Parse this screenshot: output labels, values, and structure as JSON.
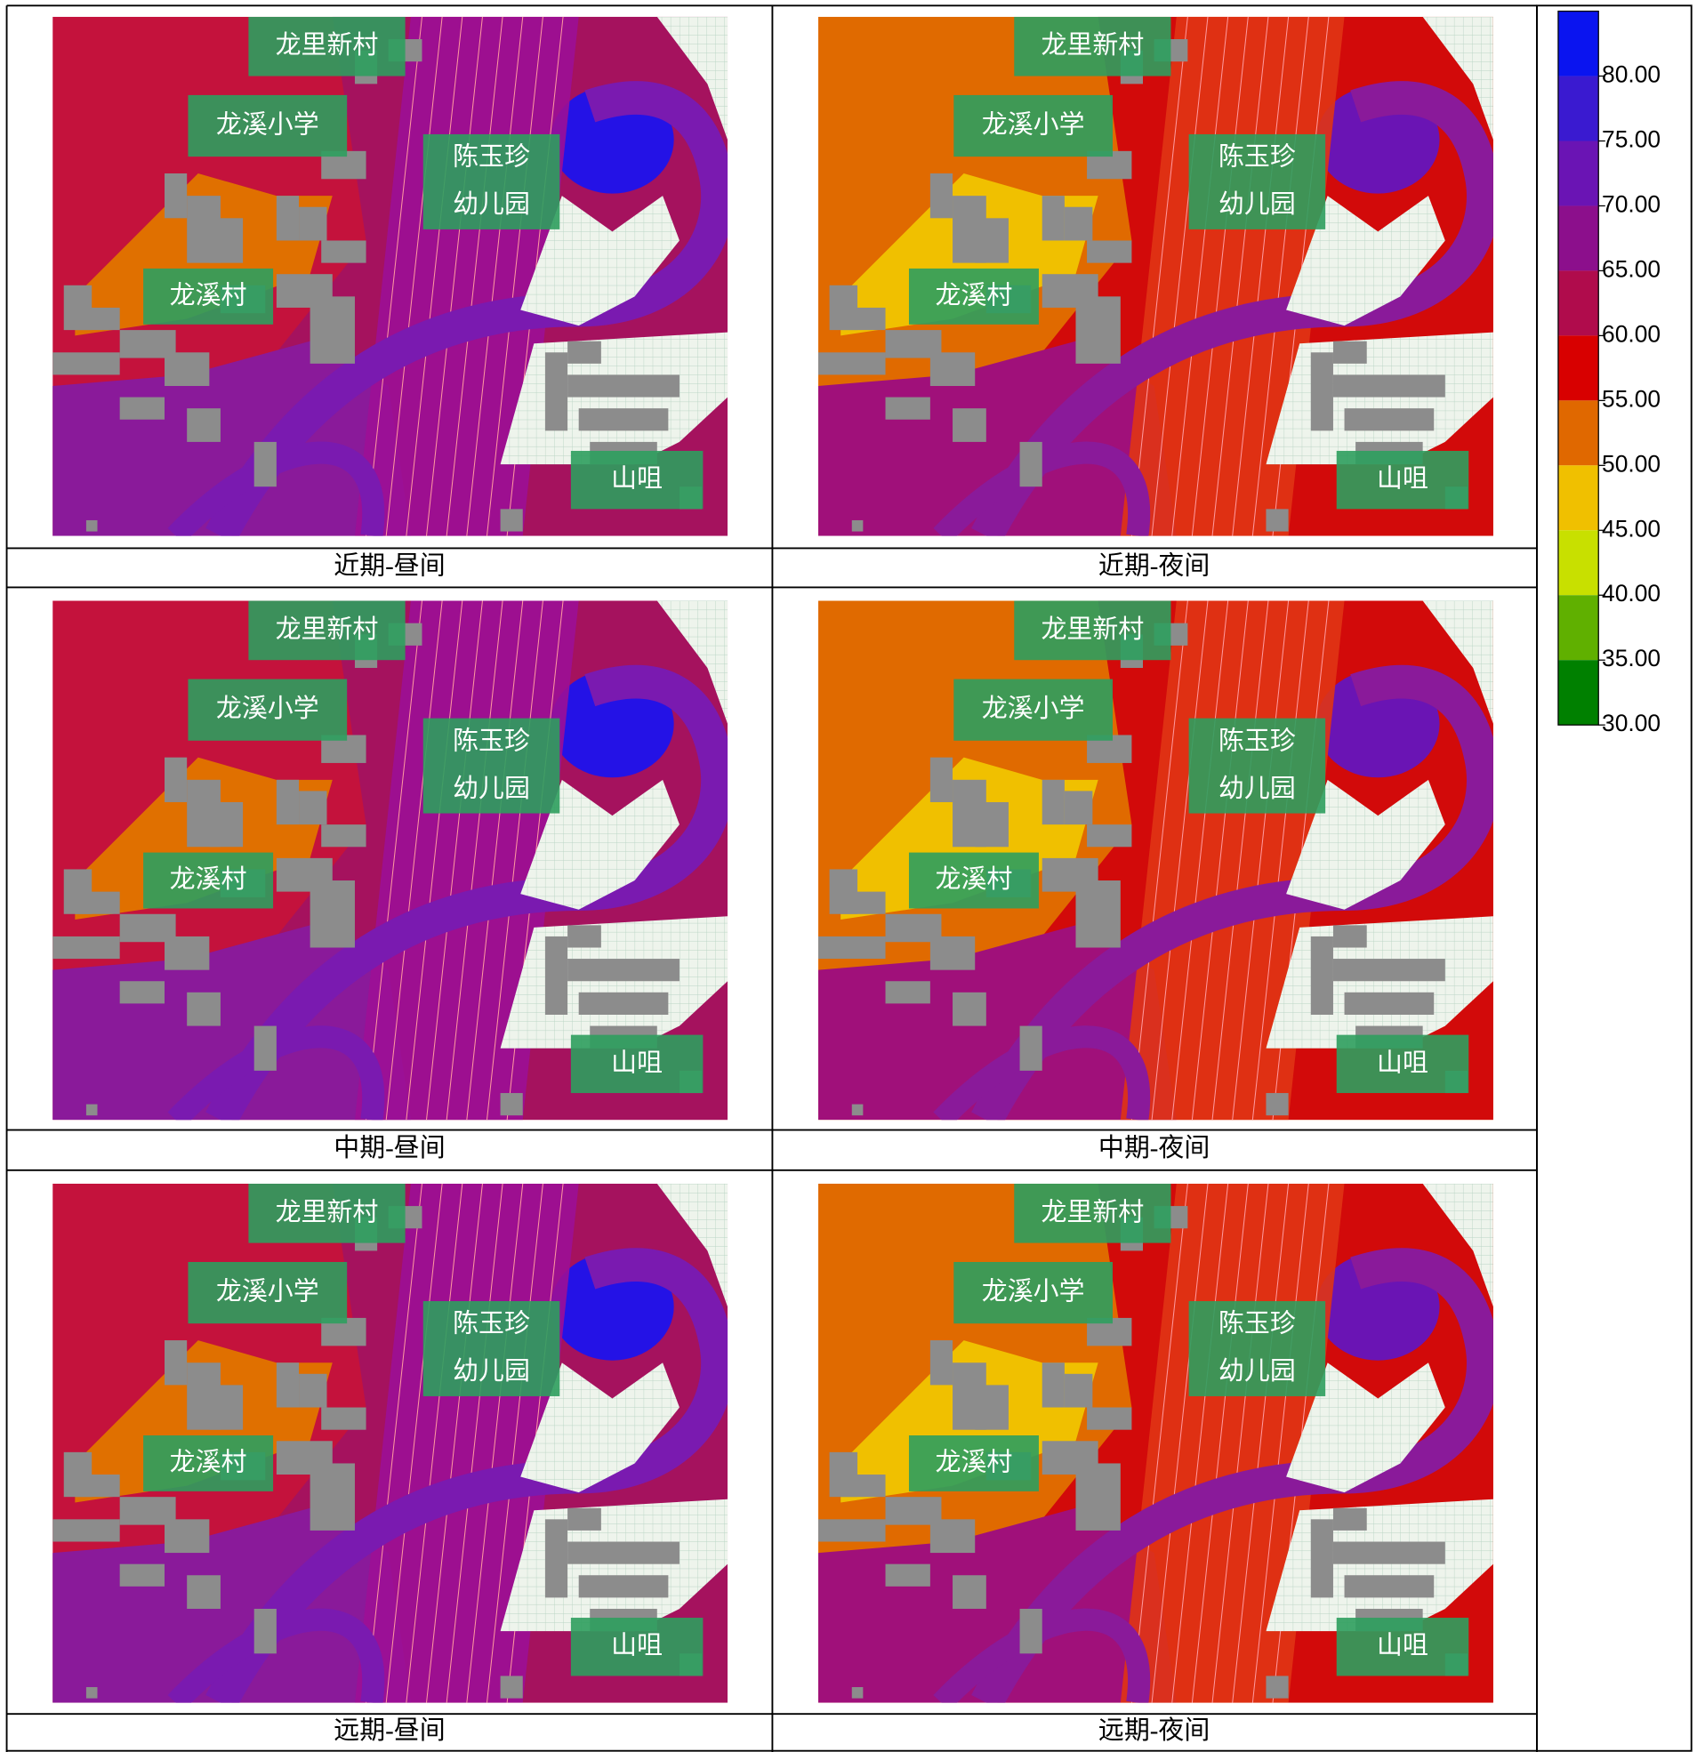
{
  "panels": [
    {
      "caption": "近期-昼间",
      "labels": [
        "龙里新村",
        "龙溪小学",
        "陈玉珍",
        "幼儿园",
        "龙溪村",
        "山咀"
      ]
    },
    {
      "caption": "近期-夜间",
      "labels": [
        "龙里新村",
        "龙溪小学",
        "陈玉珍",
        "幼儿园",
        "龙溪村",
        "山咀"
      ]
    },
    {
      "caption": "中期-昼间",
      "labels": [
        "龙里新村",
        "龙溪小学",
        "陈玉珍",
        "幼儿园",
        "龙溪村",
        "山咀"
      ]
    },
    {
      "caption": "中期-夜间",
      "labels": [
        "龙里新村",
        "龙溪小学",
        "陈玉珍",
        "幼儿园",
        "龙溪村",
        "山咀"
      ]
    },
    {
      "caption": "远期-昼间",
      "labels": [
        "龙里新村",
        "龙溪小学",
        "陈玉珍",
        "幼儿园",
        "龙溪村",
        "山咀"
      ]
    },
    {
      "caption": "远期-夜间",
      "labels": [
        "龙里新村",
        "龙溪小学",
        "陈玉珍",
        "幼儿园",
        "龙溪村",
        "山咀"
      ]
    }
  ],
  "legend": {
    "colors": [
      "#0a14f0",
      "#3a1ad0",
      "#6a14b4",
      "#8c0f8c",
      "#b00c4c",
      "#d80000",
      "#e06800",
      "#f0c000",
      "#c8e000",
      "#60b000",
      "#008000"
    ],
    "levels": [
      "80.00",
      "75.00",
      "70.00",
      "65.00",
      "60.00",
      "55.00",
      "50.00",
      "45.00",
      "40.00",
      "35.00",
      "30.00"
    ]
  }
}
